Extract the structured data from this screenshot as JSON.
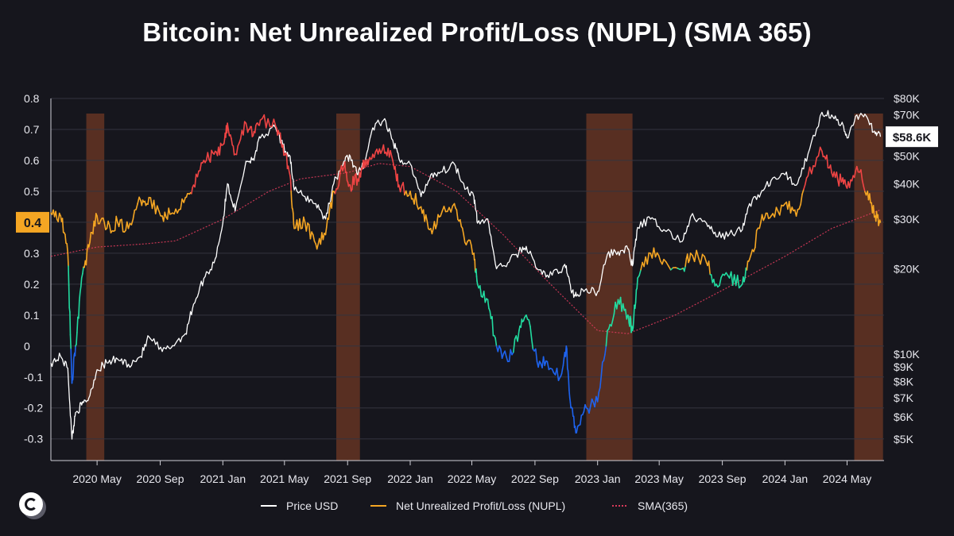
{
  "title": "Bitcoin: Net Unrealized Profit/Loss (NUPL) (SMA 365)",
  "chart_data": {
    "type": "line",
    "title": "Bitcoin: Net Unrealized Profit/Loss (NUPL) (SMA 365)",
    "xlabel": "",
    "ylabel_left": "",
    "ylabel_right": "",
    "x_ticks": [
      "2020 May",
      "2020 Sep",
      "2021 Jan",
      "2021 May",
      "2021 Sep",
      "2022 Jan",
      "2022 May",
      "2022 Sep",
      "2023 Jan",
      "2023 May",
      "2023 Sep",
      "2024 Jan",
      "2024 May"
    ],
    "x_range": [
      "2020-02",
      "2024-07"
    ],
    "left_axis": {
      "ticks": [
        "0.8",
        "0.7",
        "0.6",
        "0.5",
        "0.4",
        "0.3",
        "0.2",
        "0.1",
        "0",
        "-0.1",
        "-0.2",
        "-0.3"
      ],
      "ylim": [
        -0.37,
        0.8
      ]
    },
    "right_axis": {
      "ticks": [
        "$80K",
        "$70K",
        "$50K",
        "$40K",
        "$30K",
        "$20K",
        "$10K",
        "$9K",
        "$8K",
        "$7K",
        "$6K",
        "$5K"
      ],
      "scale": "log",
      "ylim_usd": [
        4200,
        80000
      ]
    },
    "current_nupl": "0.4",
    "current_price": "$58.6K",
    "grid": true,
    "legend": "bottom",
    "legend_entries": [
      "Price USD",
      "Net Unrealized Profit/Loss (NUPL)",
      "SMA(365)"
    ],
    "colors": {
      "price": "#ffffff",
      "nupl_orange": "#f5a623",
      "nupl_red": "#ef4444",
      "nupl_green": "#22dca0",
      "nupl_blue": "#1e63ee",
      "sma": "#d83a5a",
      "band": "#b5542a"
    },
    "shaded_periods": [
      {
        "start": "2020-04-10",
        "end": "2020-05-15"
      },
      {
        "start": "2021-08-10",
        "end": "2021-09-25"
      },
      {
        "start": "2022-12-10",
        "end": "2023-03-10"
      },
      {
        "start": "2024-05-15",
        "end": "2024-07-10"
      }
    ],
    "series": [
      {
        "name": "Net Unrealized Profit/Loss (NUPL)",
        "x": [
          "2020-02-01",
          "2020-02-20",
          "2020-03-05",
          "2020-03-13",
          "2020-03-20",
          "2020-04-01",
          "2020-04-15",
          "2020-05-01",
          "2020-05-20",
          "2020-06-10",
          "2020-07-01",
          "2020-07-25",
          "2020-08-10",
          "2020-09-05",
          "2020-09-25",
          "2020-10-20",
          "2020-11-05",
          "2020-11-25",
          "2020-12-15",
          "2021-01-01",
          "2021-01-10",
          "2021-01-25",
          "2021-02-15",
          "2021-03-01",
          "2021-03-15",
          "2021-04-14",
          "2021-04-28",
          "2021-05-12",
          "2021-05-20",
          "2021-06-10",
          "2021-07-01",
          "2021-07-20",
          "2021-08-05",
          "2021-08-25",
          "2021-09-06",
          "2021-09-21",
          "2021-10-05",
          "2021-10-20",
          "2021-11-10",
          "2021-11-28",
          "2021-12-10",
          "2022-01-01",
          "2022-01-22",
          "2022-02-10",
          "2022-03-01",
          "2022-03-28",
          "2022-04-15",
          "2022-05-05",
          "2022-05-12",
          "2022-06-01",
          "2022-06-18",
          "2022-07-10",
          "2022-08-01",
          "2022-08-15",
          "2022-09-05",
          "2022-09-25",
          "2022-10-20",
          "2022-11-01",
          "2022-11-10",
          "2022-11-21",
          "2022-12-10",
          "2023-01-01",
          "2023-01-20",
          "2023-02-10",
          "2023-03-01",
          "2023-03-10",
          "2023-03-20",
          "2023-04-14",
          "2023-05-10",
          "2023-06-15",
          "2023-07-01",
          "2023-08-01",
          "2023-08-20",
          "2023-09-15",
          "2023-10-10",
          "2023-10-24",
          "2023-11-15",
          "2023-12-05",
          "2024-01-01",
          "2024-01-23",
          "2024-02-15",
          "2024-03-13",
          "2024-04-01",
          "2024-04-20",
          "2024-05-01",
          "2024-05-20",
          "2024-06-10",
          "2024-06-25",
          "2024-07-05"
        ],
        "values": [
          0.43,
          0.42,
          0.3,
          -0.12,
          0.0,
          0.22,
          0.32,
          0.42,
          0.38,
          0.4,
          0.38,
          0.47,
          0.48,
          0.42,
          0.43,
          0.48,
          0.52,
          0.6,
          0.62,
          0.65,
          0.72,
          0.62,
          0.72,
          0.68,
          0.73,
          0.71,
          0.65,
          0.55,
          0.38,
          0.4,
          0.33,
          0.36,
          0.5,
          0.58,
          0.52,
          0.54,
          0.6,
          0.62,
          0.65,
          0.6,
          0.52,
          0.5,
          0.45,
          0.38,
          0.42,
          0.46,
          0.36,
          0.3,
          0.2,
          0.15,
          0.0,
          -0.05,
          0.05,
          0.1,
          -0.05,
          -0.05,
          -0.1,
          0.0,
          -0.2,
          -0.28,
          -0.2,
          -0.18,
          0.05,
          0.15,
          0.1,
          0.05,
          0.22,
          0.3,
          0.28,
          0.25,
          0.3,
          0.27,
          0.2,
          0.22,
          0.2,
          0.28,
          0.4,
          0.42,
          0.46,
          0.42,
          0.55,
          0.63,
          0.56,
          0.53,
          0.51,
          0.58,
          0.5,
          0.42,
          0.4
        ]
      },
      {
        "name": "Price USD",
        "x": [
          "2020-02-01",
          "2020-02-20",
          "2020-03-05",
          "2020-03-13",
          "2020-03-20",
          "2020-04-01",
          "2020-04-15",
          "2020-05-01",
          "2020-05-20",
          "2020-06-10",
          "2020-07-01",
          "2020-07-25",
          "2020-08-10",
          "2020-09-05",
          "2020-09-25",
          "2020-10-20",
          "2020-11-05",
          "2020-11-25",
          "2020-12-15",
          "2021-01-01",
          "2021-01-10",
          "2021-01-25",
          "2021-02-15",
          "2021-03-01",
          "2021-03-15",
          "2021-04-14",
          "2021-04-28",
          "2021-05-12",
          "2021-05-20",
          "2021-06-10",
          "2021-07-01",
          "2021-07-20",
          "2021-08-05",
          "2021-08-25",
          "2021-09-06",
          "2021-09-21",
          "2021-10-05",
          "2021-10-20",
          "2021-11-10",
          "2021-11-28",
          "2021-12-10",
          "2022-01-01",
          "2022-01-22",
          "2022-02-10",
          "2022-03-01",
          "2022-03-28",
          "2022-04-15",
          "2022-05-05",
          "2022-05-12",
          "2022-06-01",
          "2022-06-18",
          "2022-07-10",
          "2022-08-01",
          "2022-08-15",
          "2022-09-05",
          "2022-09-25",
          "2022-10-20",
          "2022-11-01",
          "2022-11-10",
          "2022-11-21",
          "2022-12-10",
          "2023-01-01",
          "2023-01-20",
          "2023-02-10",
          "2023-03-01",
          "2023-03-10",
          "2023-03-20",
          "2023-04-14",
          "2023-05-10",
          "2023-06-15",
          "2023-07-01",
          "2023-08-01",
          "2023-08-20",
          "2023-09-15",
          "2023-10-10",
          "2023-10-24",
          "2023-11-15",
          "2023-12-05",
          "2024-01-01",
          "2024-01-23",
          "2024-02-15",
          "2024-03-13",
          "2024-04-01",
          "2024-04-20",
          "2024-05-01",
          "2024-05-20",
          "2024-06-10",
          "2024-06-25",
          "2024-07-05"
        ],
        "values": [
          9300,
          9800,
          8900,
          5000,
          6200,
          6600,
          7000,
          8800,
          9300,
          9600,
          9200,
          9800,
          11500,
          10200,
          10700,
          11800,
          15000,
          18500,
          21000,
          29000,
          40000,
          32000,
          48000,
          49000,
          58000,
          63000,
          54000,
          50000,
          38000,
          36000,
          34000,
          30000,
          40000,
          48000,
          50000,
          43000,
          48000,
          63000,
          67000,
          57000,
          49000,
          47000,
          36000,
          43000,
          44000,
          47000,
          40000,
          36000,
          29000,
          30000,
          20000,
          21000,
          23000,
          24000,
          20000,
          19000,
          19500,
          20500,
          16800,
          16000,
          17000,
          16600,
          22500,
          23000,
          23500,
          20500,
          28000,
          30000,
          27500,
          25000,
          30500,
          29000,
          26000,
          26600,
          27500,
          34000,
          37000,
          41000,
          43000,
          39500,
          51000,
          71500,
          70000,
          65000,
          58000,
          70000,
          68000,
          60000,
          58600
        ]
      },
      {
        "name": "SMA(365)",
        "x": [
          "2020-02-01",
          "2020-05-01",
          "2020-08-01",
          "2020-10-01",
          "2021-01-01",
          "2021-04-01",
          "2021-06-01",
          "2021-09-01",
          "2021-11-01",
          "2022-01-01",
          "2022-04-01",
          "2022-07-01",
          "2022-10-01",
          "2023-01-01",
          "2023-03-01",
          "2023-06-01",
          "2023-09-01",
          "2024-01-01",
          "2024-04-01",
          "2024-07-05"
        ],
        "values": [
          0.29,
          0.32,
          0.33,
          0.34,
          0.41,
          0.5,
          0.54,
          0.56,
          0.59,
          0.58,
          0.5,
          0.36,
          0.2,
          0.05,
          0.04,
          0.1,
          0.18,
          0.29,
          0.38,
          0.44
        ]
      }
    ]
  }
}
